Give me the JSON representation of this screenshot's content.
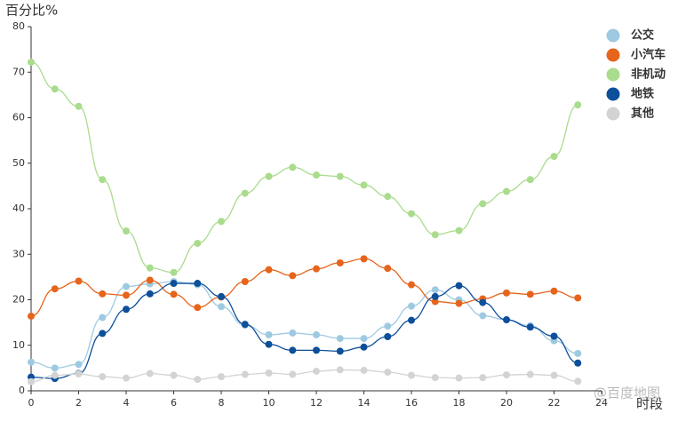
{
  "chart_data": {
    "type": "line",
    "y_label": "百分比%",
    "x_label": "时段",
    "watermark": "@百度地图",
    "x": [
      0,
      1,
      2,
      3,
      4,
      5,
      6,
      7,
      8,
      9,
      10,
      11,
      12,
      13,
      14,
      15,
      16,
      17,
      18,
      19,
      20,
      21,
      22,
      23
    ],
    "xlim": [
      0,
      24
    ],
    "xticks": [
      0,
      2,
      4,
      6,
      8,
      10,
      12,
      14,
      16,
      18,
      20,
      22,
      24
    ],
    "ylim": [
      0,
      80
    ],
    "yticks": [
      0,
      10,
      20,
      30,
      40,
      50,
      60,
      70,
      80
    ],
    "legend": "top-right",
    "series": [
      {
        "name": "公交",
        "color": "#9ecae1",
        "values": [
          6.3,
          5,
          5.8,
          16.1,
          22.9,
          23.5,
          24,
          23.3,
          18.5,
          14.4,
          12.3,
          12.7,
          12.3,
          11.5,
          11.5,
          14.2,
          18.6,
          22.2,
          20,
          16.5,
          15.6,
          14.3,
          11,
          8.2
        ]
      },
      {
        "name": "小汽车",
        "color": "#e6641b",
        "values": [
          16.4,
          22.4,
          24.1,
          21.3,
          21,
          24.3,
          21.2,
          18.3,
          20.6,
          24,
          26.6,
          25.3,
          26.8,
          28.1,
          29,
          26.9,
          23.3,
          19.6,
          19.2,
          20.2,
          21.5,
          21.2,
          21.9,
          20.4
        ]
      },
      {
        "name": "非机动",
        "color": "#a9dc8c",
        "values": [
          72.2,
          66.3,
          62.5,
          46.4,
          35.1,
          27,
          26,
          32.4,
          37.2,
          43.4,
          47.1,
          49.1,
          47.4,
          47.1,
          45.2,
          42.7,
          38.9,
          34.3,
          35.2,
          41.1,
          43.8,
          46.4,
          51.5,
          62.8
        ]
      },
      {
        "name": "地铁",
        "color": "#0d4f9a",
        "values": [
          3,
          2.7,
          3.8,
          12.6,
          17.9,
          21.3,
          23.6,
          23.6,
          20.7,
          14.6,
          10.2,
          8.9,
          8.9,
          8.7,
          9.6,
          11.9,
          15.5,
          20.7,
          23.1,
          19.4,
          15.6,
          14,
          12,
          6.1
        ]
      },
      {
        "name": "其他",
        "color": "#d3d3d3",
        "values": [
          2,
          3.4,
          3.7,
          3.1,
          2.8,
          3.8,
          3.4,
          2.5,
          3.1,
          3.6,
          3.9,
          3.6,
          4.3,
          4.6,
          4.5,
          4.1,
          3.4,
          2.9,
          2.8,
          2.9,
          3.5,
          3.6,
          3.4,
          2.1
        ]
      }
    ]
  }
}
